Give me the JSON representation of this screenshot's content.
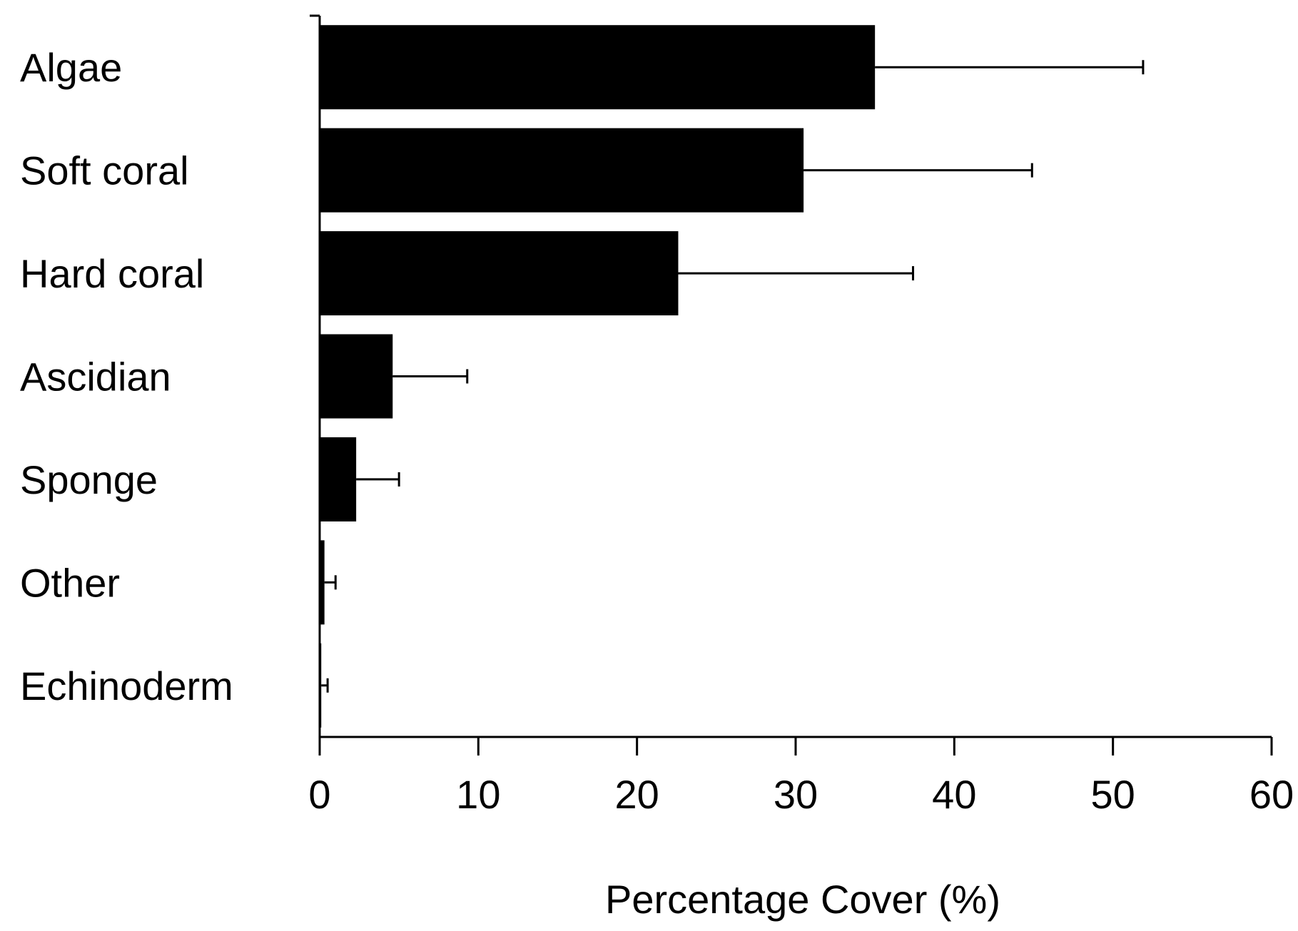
{
  "chart_data": {
    "type": "bar",
    "orientation": "horizontal",
    "title": "",
    "xlabel": "Percentage Cover (%)",
    "ylabel": "",
    "xlim": [
      0,
      60
    ],
    "xticks": [
      0,
      10,
      20,
      30,
      40,
      50,
      60
    ],
    "grid": false,
    "legend": "none",
    "categories": [
      "Algae",
      "Soft coral",
      "Hard coral",
      "Ascidian",
      "Sponge",
      "Other",
      "Echinoderm"
    ],
    "values": [
      35.0,
      30.5,
      22.6,
      4.6,
      2.3,
      0.3,
      0.1
    ],
    "error_upper": [
      16.9,
      14.4,
      14.8,
      4.7,
      2.7,
      0.7,
      0.4
    ],
    "bar_color": "#000000"
  }
}
